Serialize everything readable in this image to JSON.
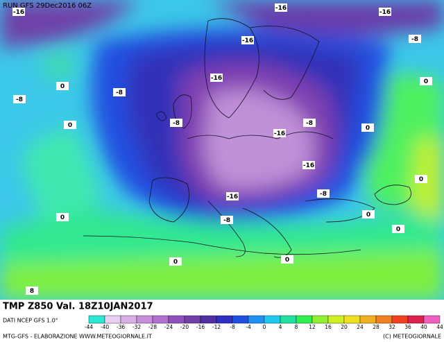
{
  "header": {
    "run": "RUN GFS 29Dec2016 06Z"
  },
  "map": {
    "contour_labels": [
      "-16",
      "-16",
      "-16",
      "-16",
      "-8",
      "0",
      "-8",
      "-16",
      "-8",
      "0",
      "-8",
      "0",
      "-8",
      "-16",
      "0",
      "-16",
      "0",
      "-8",
      "-16",
      "0",
      "-8",
      "0",
      "0",
      "0",
      "0",
      "8"
    ]
  },
  "footer": {
    "title": "TMP Z850 Val. 18Z10JAN2017",
    "source": "DATI NCEP GFS 1.0°",
    "credit": "MTG-GFS - ELABORAZIONE WWW.METEOGIORNALE.IT",
    "copyright": "(C) METEOGIORNALE"
  },
  "legend": {
    "ticks": [
      -44,
      -40,
      -36,
      -32,
      -28,
      -24,
      -20,
      -16,
      -12,
      -8,
      -4,
      0,
      4,
      8,
      12,
      16,
      20,
      24,
      28,
      32,
      36,
      40,
      44
    ],
    "colors": [
      "#2ee6d6",
      "#e8d0f0",
      "#d8b0e8",
      "#c890dc",
      "#b070d0",
      "#9050c0",
      "#7040a8",
      "#5030a0",
      "#3030c0",
      "#2050e0",
      "#2090f0",
      "#20c8f0",
      "#20e0a0",
      "#30f050",
      "#90f030",
      "#d0f020",
      "#f0e020",
      "#f0b020",
      "#f08020",
      "#f04020",
      "#e02050",
      "#f060c0"
    ]
  }
}
